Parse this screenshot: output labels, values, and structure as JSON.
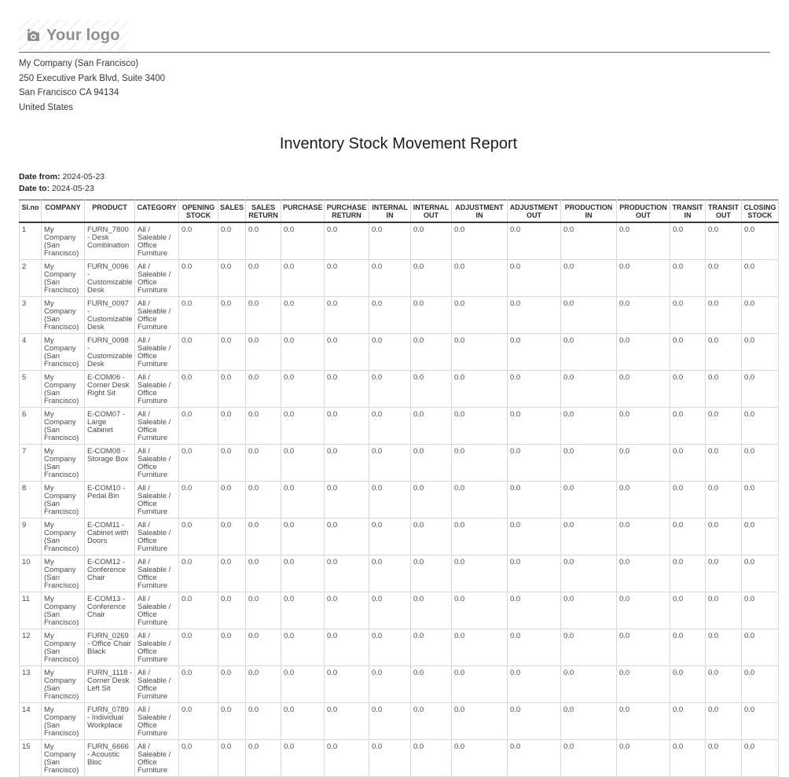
{
  "header": {
    "logo_text": "Your logo",
    "logo_icon": "camera-plus-icon",
    "company_lines": [
      "My Company (San Francisco)",
      "250 Executive Park Blvd, Suite 3400",
      "San Francisco CA 94134",
      "United States"
    ]
  },
  "report": {
    "title": "Inventory Stock Movement Report",
    "date_from_label": "Date from:",
    "date_from": "2024-05-23",
    "date_to_label": "Date to:",
    "date_to": "2024-05-23"
  },
  "table": {
    "columns": [
      {
        "key": "slno",
        "label": "Sl.no"
      },
      {
        "key": "company",
        "label": "COMPANY"
      },
      {
        "key": "product",
        "label": "PRODUCT"
      },
      {
        "key": "category",
        "label": "CATEGORY"
      },
      {
        "key": "opening-stock",
        "label": "OPENING STOCK"
      },
      {
        "key": "sales",
        "label": "SALES"
      },
      {
        "key": "sales-return",
        "label": "SALES RETURN"
      },
      {
        "key": "purchase",
        "label": "PURCHASE"
      },
      {
        "key": "purchase-return",
        "label": "PURCHASE RETURN"
      },
      {
        "key": "internal-in",
        "label": "INTERNAL IN"
      },
      {
        "key": "internal-out",
        "label": "INTERNAL OUT"
      },
      {
        "key": "adjustment-in",
        "label": "ADJUSTMENT IN"
      },
      {
        "key": "adjustment-out",
        "label": "ADJUSTMENT OUT"
      },
      {
        "key": "production-in",
        "label": "PRODUCTION IN"
      },
      {
        "key": "production-out",
        "label": "PRODUCTION OUT"
      },
      {
        "key": "transit-in",
        "label": "TRANSIT IN"
      },
      {
        "key": "transit-out",
        "label": "TRANSIT OUT"
      },
      {
        "key": "closing-stock",
        "label": "CLOSING STOCK"
      }
    ],
    "rows": [
      {
        "slno": "1",
        "company": "My Company (San Francisco)",
        "product": "FURN_7800 - Desk Combination",
        "category": "All / Saleable / Office Furniture",
        "values": [
          "0.0",
          "0.0",
          "0.0",
          "0.0",
          "0.0",
          "0.0",
          "0.0",
          "0.0",
          "0.0",
          "0.0",
          "0.0",
          "0.0",
          "0.0",
          "0.0"
        ]
      },
      {
        "slno": "2",
        "company": "My Company (San Francisco)",
        "product": "FURN_0096 - Customizable Desk",
        "category": "All / Saleable / Office Furniture",
        "values": [
          "0.0",
          "0.0",
          "0.0",
          "0.0",
          "0.0",
          "0.0",
          "0.0",
          "0.0",
          "0.0",
          "0.0",
          "0.0",
          "0.0",
          "0.0",
          "0.0"
        ]
      },
      {
        "slno": "3",
        "company": "My Company (San Francisco)",
        "product": "FURN_0097 - Customizable Desk",
        "category": "All / Saleable / Office Furniture",
        "values": [
          "0.0",
          "0.0",
          "0.0",
          "0.0",
          "0.0",
          "0.0",
          "0.0",
          "0.0",
          "0.0",
          "0.0",
          "0.0",
          "0.0",
          "0.0",
          "0.0"
        ]
      },
      {
        "slno": "4",
        "company": "My Company (San Francisco)",
        "product": "FURN_0098 - Customizable Desk",
        "category": "All / Saleable / Office Furniture",
        "values": [
          "0.0",
          "0.0",
          "0.0",
          "0.0",
          "0.0",
          "0.0",
          "0.0",
          "0.0",
          "0.0",
          "0.0",
          "0.0",
          "0.0",
          "0.0",
          "0.0"
        ]
      },
      {
        "slno": "5",
        "company": "My Company (San Francisco)",
        "product": "E-COM06 - Corner Desk Right Sit",
        "category": "All / Saleable / Office Furniture",
        "values": [
          "0.0",
          "0.0",
          "0.0",
          "0.0",
          "0.0",
          "0.0",
          "0.0",
          "0.0",
          "0.0",
          "0.0",
          "0.0",
          "0.0",
          "0.0",
          "0.0"
        ]
      },
      {
        "slno": "6",
        "company": "My Company (San Francisco)",
        "product": "E-COM07 - Large Cabinet",
        "category": "All / Saleable / Office Furniture",
        "values": [
          "0.0",
          "0.0",
          "0.0",
          "0.0",
          "0.0",
          "0.0",
          "0.0",
          "0.0",
          "0.0",
          "0.0",
          "0.0",
          "0.0",
          "0.0",
          "0.0"
        ]
      },
      {
        "slno": "7",
        "company": "My Company (San Francisco)",
        "product": "E-COM08 - Storage Box",
        "category": "All / Saleable / Office Furniture",
        "values": [
          "0.0",
          "0.0",
          "0.0",
          "0.0",
          "0.0",
          "0.0",
          "0.0",
          "0.0",
          "0.0",
          "0.0",
          "0.0",
          "0.0",
          "0.0",
          "0.0"
        ]
      },
      {
        "slno": "8",
        "company": "My Company (San Francisco)",
        "product": "E-COM10 - Pedal Bin",
        "category": "All / Saleable / Office Furniture",
        "values": [
          "0.0",
          "0.0",
          "0.0",
          "0.0",
          "0.0",
          "0.0",
          "0.0",
          "0.0",
          "0.0",
          "0.0",
          "0.0",
          "0.0",
          "0.0",
          "0.0"
        ]
      },
      {
        "slno": "9",
        "company": "My Company (San Francisco)",
        "product": "E-COM11 - Cabinet with Doors",
        "category": "All / Saleable / Office Furniture",
        "values": [
          "0.0",
          "0.0",
          "0.0",
          "0.0",
          "0.0",
          "0.0",
          "0.0",
          "0.0",
          "0.0",
          "0.0",
          "0.0",
          "0.0",
          "0.0",
          "0.0"
        ]
      },
      {
        "slno": "10",
        "company": "My Company (San Francisco)",
        "product": "E-COM12 - Conference Chair",
        "category": "All / Saleable / Office Furniture",
        "values": [
          "0.0",
          "0.0",
          "0.0",
          "0.0",
          "0.0",
          "0.0",
          "0.0",
          "0.0",
          "0.0",
          "0.0",
          "0.0",
          "0.0",
          "0.0",
          "0.0"
        ]
      },
      {
        "slno": "11",
        "company": "My Company (San Francisco)",
        "product": "E-COM13 - Conference Chair",
        "category": "All / Saleable / Office Furniture",
        "values": [
          "0.0",
          "0.0",
          "0.0",
          "0.0",
          "0.0",
          "0.0",
          "0.0",
          "0.0",
          "0.0",
          "0.0",
          "0.0",
          "0.0",
          "0.0",
          "0.0"
        ]
      },
      {
        "slno": "12",
        "company": "My Company (San Francisco)",
        "product": "FURN_0269 - Office Chair Black",
        "category": "All / Saleable / Office Furniture",
        "values": [
          "0.0",
          "0.0",
          "0.0",
          "0.0",
          "0.0",
          "0.0",
          "0.0",
          "0.0",
          "0.0",
          "0.0",
          "0.0",
          "0.0",
          "0.0",
          "0.0"
        ]
      },
      {
        "slno": "13",
        "company": "My Company (San Francisco)",
        "product": "FURN_1118 - Corner Desk Left Sit",
        "category": "All / Saleable / Office Furniture",
        "values": [
          "0.0",
          "0.0",
          "0.0",
          "0.0",
          "0.0",
          "0.0",
          "0.0",
          "0.0",
          "0.0",
          "0.0",
          "0.0",
          "0.0",
          "0.0",
          "0.0"
        ]
      },
      {
        "slno": "14",
        "company": "My Company (San Francisco)",
        "product": "FURN_0789 - Individual Workplace",
        "category": "All / Saleable / Office Furniture",
        "values": [
          "0.0",
          "0.0",
          "0.0",
          "0.0",
          "0.0",
          "0.0",
          "0.0",
          "0.0",
          "0.0",
          "0.0",
          "0.0",
          "0.0",
          "0.0",
          "0.0"
        ]
      },
      {
        "slno": "15",
        "company": "My Company (San Francisco)",
        "product": "FURN_6666 - Acoustic Bloc",
        "category": "All / Saleable / Office Furniture",
        "values": [
          "0.0",
          "0.0",
          "0.0",
          "0.0",
          "0.0",
          "0.0",
          "0.0",
          "0.0",
          "0.0",
          "0.0",
          "0.0",
          "0.0",
          "0.0",
          "0.0"
        ]
      }
    ]
  },
  "colors": {
    "logo_gray": "#8f8f8f",
    "divider_dark": "#5f5f5f",
    "table_border_light": "#d8d8d8",
    "table_border_dark": "#3a3a3a",
    "text_dark": "#1c1c1c",
    "text_body": "#4a4a4a"
  }
}
